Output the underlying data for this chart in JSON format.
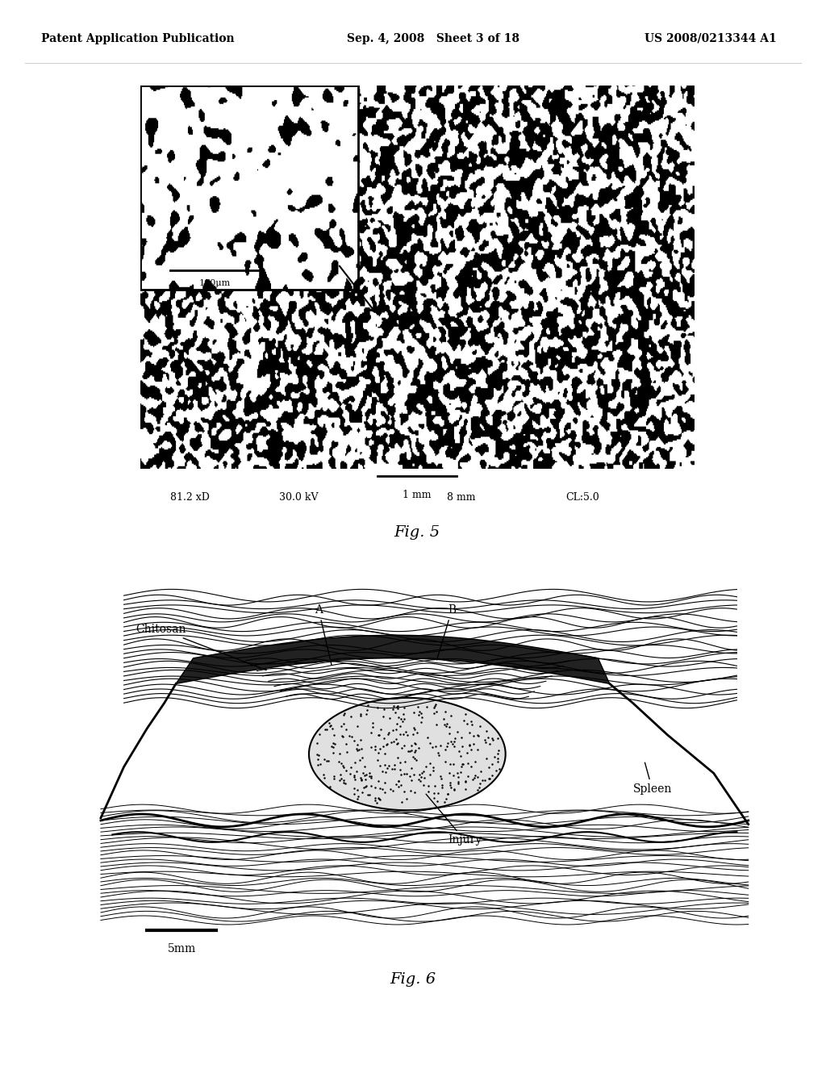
{
  "background_color": "#ffffff",
  "header_left": "Patent Application Publication",
  "header_center": "Sep. 4, 2008   Sheet 3 of 18",
  "header_right": "US 2008/0213344 A1",
  "fig5_label": "Fig. 5",
  "fig6_label": "Fig. 6",
  "fig5_scalebar_text": "1 mm",
  "fig5_inset_scalebar": "100μm",
  "fig5_meta": "81.2 xD      30.0 kV                    8 mm          CL:5.0",
  "fig6_labels": {
    "chitosan": "Chitosan",
    "A": "A",
    "B": "B",
    "spleen": "Spleen",
    "injury": "Injury"
  },
  "fig6_scalebar": "5mm"
}
